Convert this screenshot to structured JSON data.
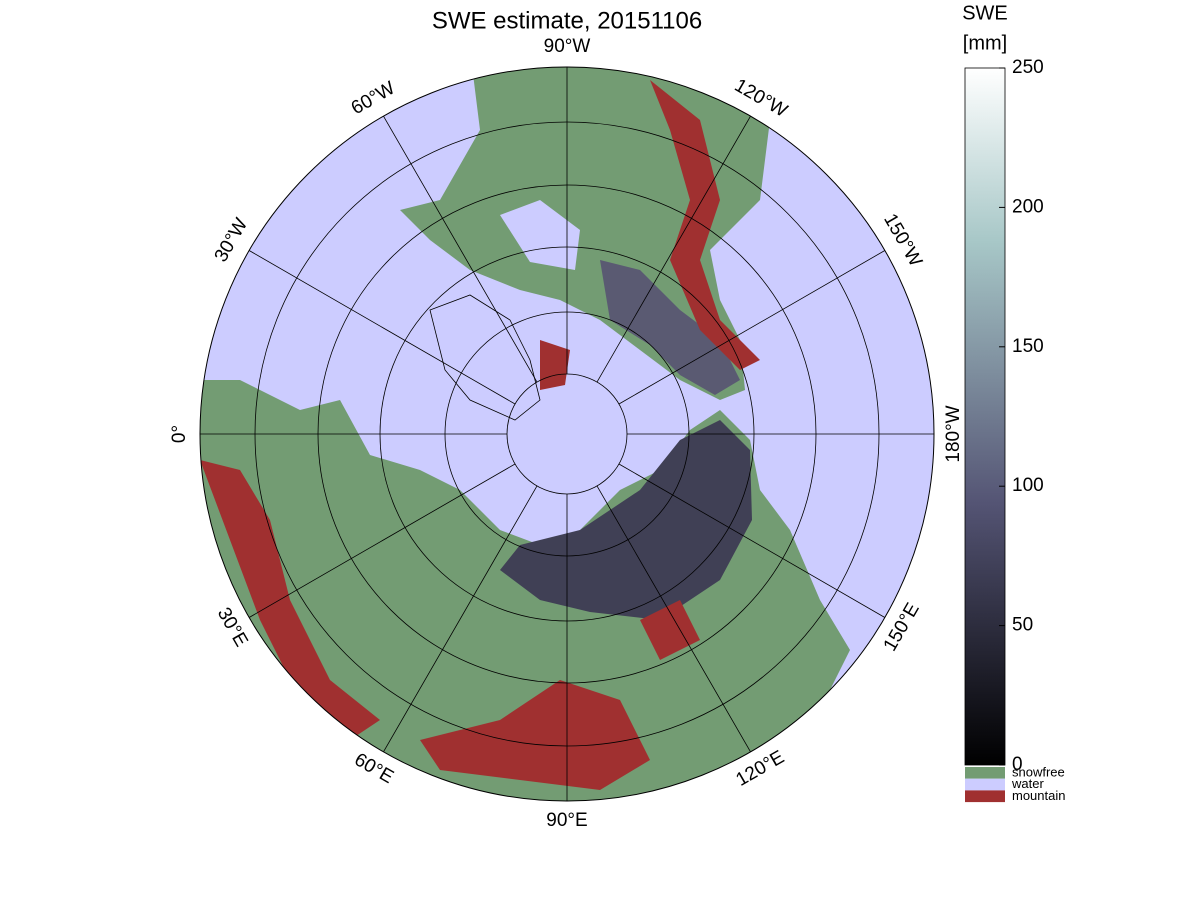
{
  "title": "SWE estimate, 20151106",
  "longitude_labels": [
    "90°W",
    "120°W",
    "150°W",
    "180°W",
    "150°E",
    "120°E",
    "90°E",
    "60°E",
    "30°E",
    "0°",
    "30°W",
    "60°W"
  ],
  "colorbar": {
    "label": [
      "SWE",
      "[mm]"
    ],
    "range": [
      0,
      250
    ],
    "ticks": [
      0,
      50,
      100,
      150,
      200,
      250
    ]
  },
  "legend": [
    {
      "label": "snowfree",
      "color": "#739c73"
    },
    {
      "label": "water",
      "color": "#ccccff"
    },
    {
      "label": "mountain",
      "color": "#a03030"
    }
  ]
}
